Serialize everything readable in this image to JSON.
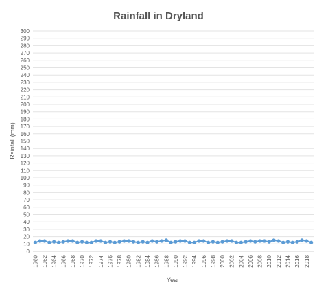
{
  "chart_data": {
    "type": "line",
    "title": "Rainfall in Dryland",
    "xlabel": "Year",
    "ylabel": "Rainfall (mm)",
    "ylim": [
      0,
      300
    ],
    "ytick_step": 10,
    "grid": true,
    "markers": true,
    "x": [
      1960,
      1961,
      1962,
      1963,
      1964,
      1965,
      1966,
      1967,
      1968,
      1969,
      1970,
      1971,
      1972,
      1973,
      1974,
      1975,
      1976,
      1977,
      1978,
      1979,
      1980,
      1981,
      1982,
      1983,
      1984,
      1985,
      1986,
      1987,
      1988,
      1989,
      1990,
      1991,
      1992,
      1993,
      1994,
      1995,
      1996,
      1997,
      1998,
      1999,
      2000,
      2001,
      2002,
      2003,
      2004,
      2005,
      2006,
      2007,
      2008,
      2009,
      2010,
      2011,
      2012,
      2013,
      2014,
      2015,
      2016,
      2017,
      2018,
      2019
    ],
    "x_tick_labels": [
      "1960",
      "1962",
      "1964",
      "1966",
      "1968",
      "1970",
      "1972",
      "1974",
      "1976",
      "1978",
      "1980",
      "1982",
      "1984",
      "1986",
      "1988",
      "1990",
      "1992",
      "1994",
      "1996",
      "1998",
      "2000",
      "2002",
      "2004",
      "2006",
      "2008",
      "2010",
      "2012",
      "2014",
      "2016",
      "2018"
    ],
    "series": [
      {
        "color": "#5b9bd5",
        "values": [
          12,
          14,
          14,
          12,
          13,
          12,
          13,
          14,
          14,
          12,
          13,
          12,
          12,
          14,
          14,
          12,
          13,
          12,
          13,
          14,
          14,
          13,
          12,
          13,
          12,
          14,
          13,
          14,
          15,
          12,
          13,
          14,
          14,
          12,
          12,
          14,
          14,
          12,
          13,
          12,
          13,
          14,
          14,
          12,
          12,
          13,
          14,
          13,
          14,
          14,
          13,
          15,
          14,
          12,
          13,
          12,
          13,
          15,
          14,
          12
        ]
      }
    ]
  }
}
